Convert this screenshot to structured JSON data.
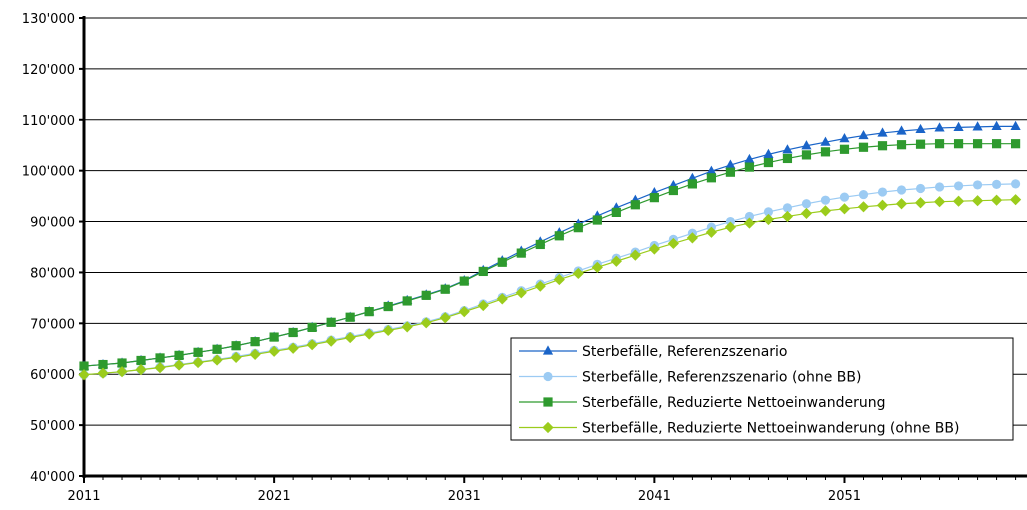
{
  "chart_data": {
    "type": "line",
    "title": "",
    "xlabel": "",
    "ylabel": "",
    "x": [
      2011,
      2012,
      2013,
      2014,
      2015,
      2016,
      2017,
      2018,
      2019,
      2020,
      2021,
      2022,
      2023,
      2024,
      2025,
      2026,
      2027,
      2028,
      2029,
      2030,
      2031,
      2032,
      2033,
      2034,
      2035,
      2036,
      2037,
      2038,
      2039,
      2040,
      2041,
      2042,
      2043,
      2044,
      2045,
      2046,
      2047,
      2048,
      2049,
      2050,
      2051,
      2052,
      2053,
      2054,
      2055,
      2056,
      2057,
      2058,
      2059,
      2060
    ],
    "xlim": [
      2011,
      2060
    ],
    "ylim": [
      40000,
      130000
    ],
    "x_ticks": [
      2011,
      2021,
      2031,
      2041,
      2051
    ],
    "x_tick_labels": [
      "2011",
      "2021",
      "2031",
      "2041",
      "2051"
    ],
    "y_ticks": [
      40000,
      50000,
      60000,
      70000,
      80000,
      90000,
      100000,
      110000,
      120000,
      130000
    ],
    "y_tick_labels": [
      "40'000",
      "50'000",
      "60'000",
      "70'000",
      "80'000",
      "90'000",
      "100'000",
      "110'000",
      "120'000",
      "130'000"
    ],
    "grid": "horizontal",
    "legend_position": "bottom-right",
    "series": [
      {
        "name": "Sterbefälle, Referenzszenario",
        "color": "#1a64c8",
        "marker": "triangle",
        "values": [
          61600,
          61900,
          62200,
          62700,
          63200,
          63700,
          64300,
          64900,
          65600,
          66400,
          67300,
          68200,
          69200,
          70200,
          71200,
          72300,
          73400,
          74500,
          75600,
          76800,
          78400,
          80400,
          82300,
          84200,
          86000,
          87800,
          89500,
          91100,
          92700,
          94200,
          95700,
          97100,
          98500,
          99900,
          101100,
          102200,
          103200,
          104100,
          104900,
          105600,
          106300,
          106900,
          107400,
          107800,
          108100,
          108400,
          108500,
          108600,
          108700,
          108700
        ]
      },
      {
        "name": "Sterbefälle, Referenzszenario (ohne BB)",
        "color": "#9ccbf3",
        "marker": "circle",
        "values": [
          59900,
          60200,
          60500,
          60900,
          61400,
          61900,
          62400,
          62900,
          63500,
          64100,
          64700,
          65300,
          66000,
          66700,
          67400,
          68100,
          68800,
          69500,
          70300,
          71300,
          72500,
          73800,
          75100,
          76400,
          77700,
          79000,
          80300,
          81600,
          82800,
          84000,
          85300,
          86500,
          87700,
          88900,
          90000,
          91000,
          91900,
          92700,
          93500,
          94200,
          94800,
          95300,
          95800,
          96200,
          96500,
          96800,
          97000,
          97200,
          97300,
          97400
        ]
      },
      {
        "name": "Sterbefälle, Reduzierte Nettoeinwanderung",
        "color": "#2e9a2e",
        "marker": "square",
        "values": [
          61600,
          61900,
          62200,
          62700,
          63200,
          63700,
          64300,
          64900,
          65600,
          66400,
          67300,
          68200,
          69200,
          70200,
          71200,
          72300,
          73300,
          74400,
          75500,
          76700,
          78300,
          80200,
          82000,
          83800,
          85500,
          87200,
          88800,
          90300,
          91800,
          93300,
          94700,
          96100,
          97400,
          98600,
          99700,
          100700,
          101600,
          102400,
          103100,
          103700,
          104200,
          104600,
          104900,
          105100,
          105200,
          105300,
          105300,
          105300,
          105300,
          105300
        ]
      },
      {
        "name": "Sterbefälle, Reduzierte Nettoeinwanderung (ohne BB)",
        "color": "#9bcc1c",
        "marker": "diamond",
        "values": [
          59900,
          60200,
          60500,
          60900,
          61300,
          61800,
          62300,
          62800,
          63300,
          63900,
          64500,
          65100,
          65800,
          66500,
          67200,
          67900,
          68600,
          69300,
          70100,
          71100,
          72300,
          73500,
          74800,
          76000,
          77300,
          78600,
          79800,
          81000,
          82200,
          83400,
          84600,
          85700,
          86800,
          87900,
          88900,
          89700,
          90400,
          91000,
          91600,
          92100,
          92500,
          92900,
          93200,
          93500,
          93700,
          93900,
          94000,
          94100,
          94200,
          94300
        ]
      }
    ]
  }
}
